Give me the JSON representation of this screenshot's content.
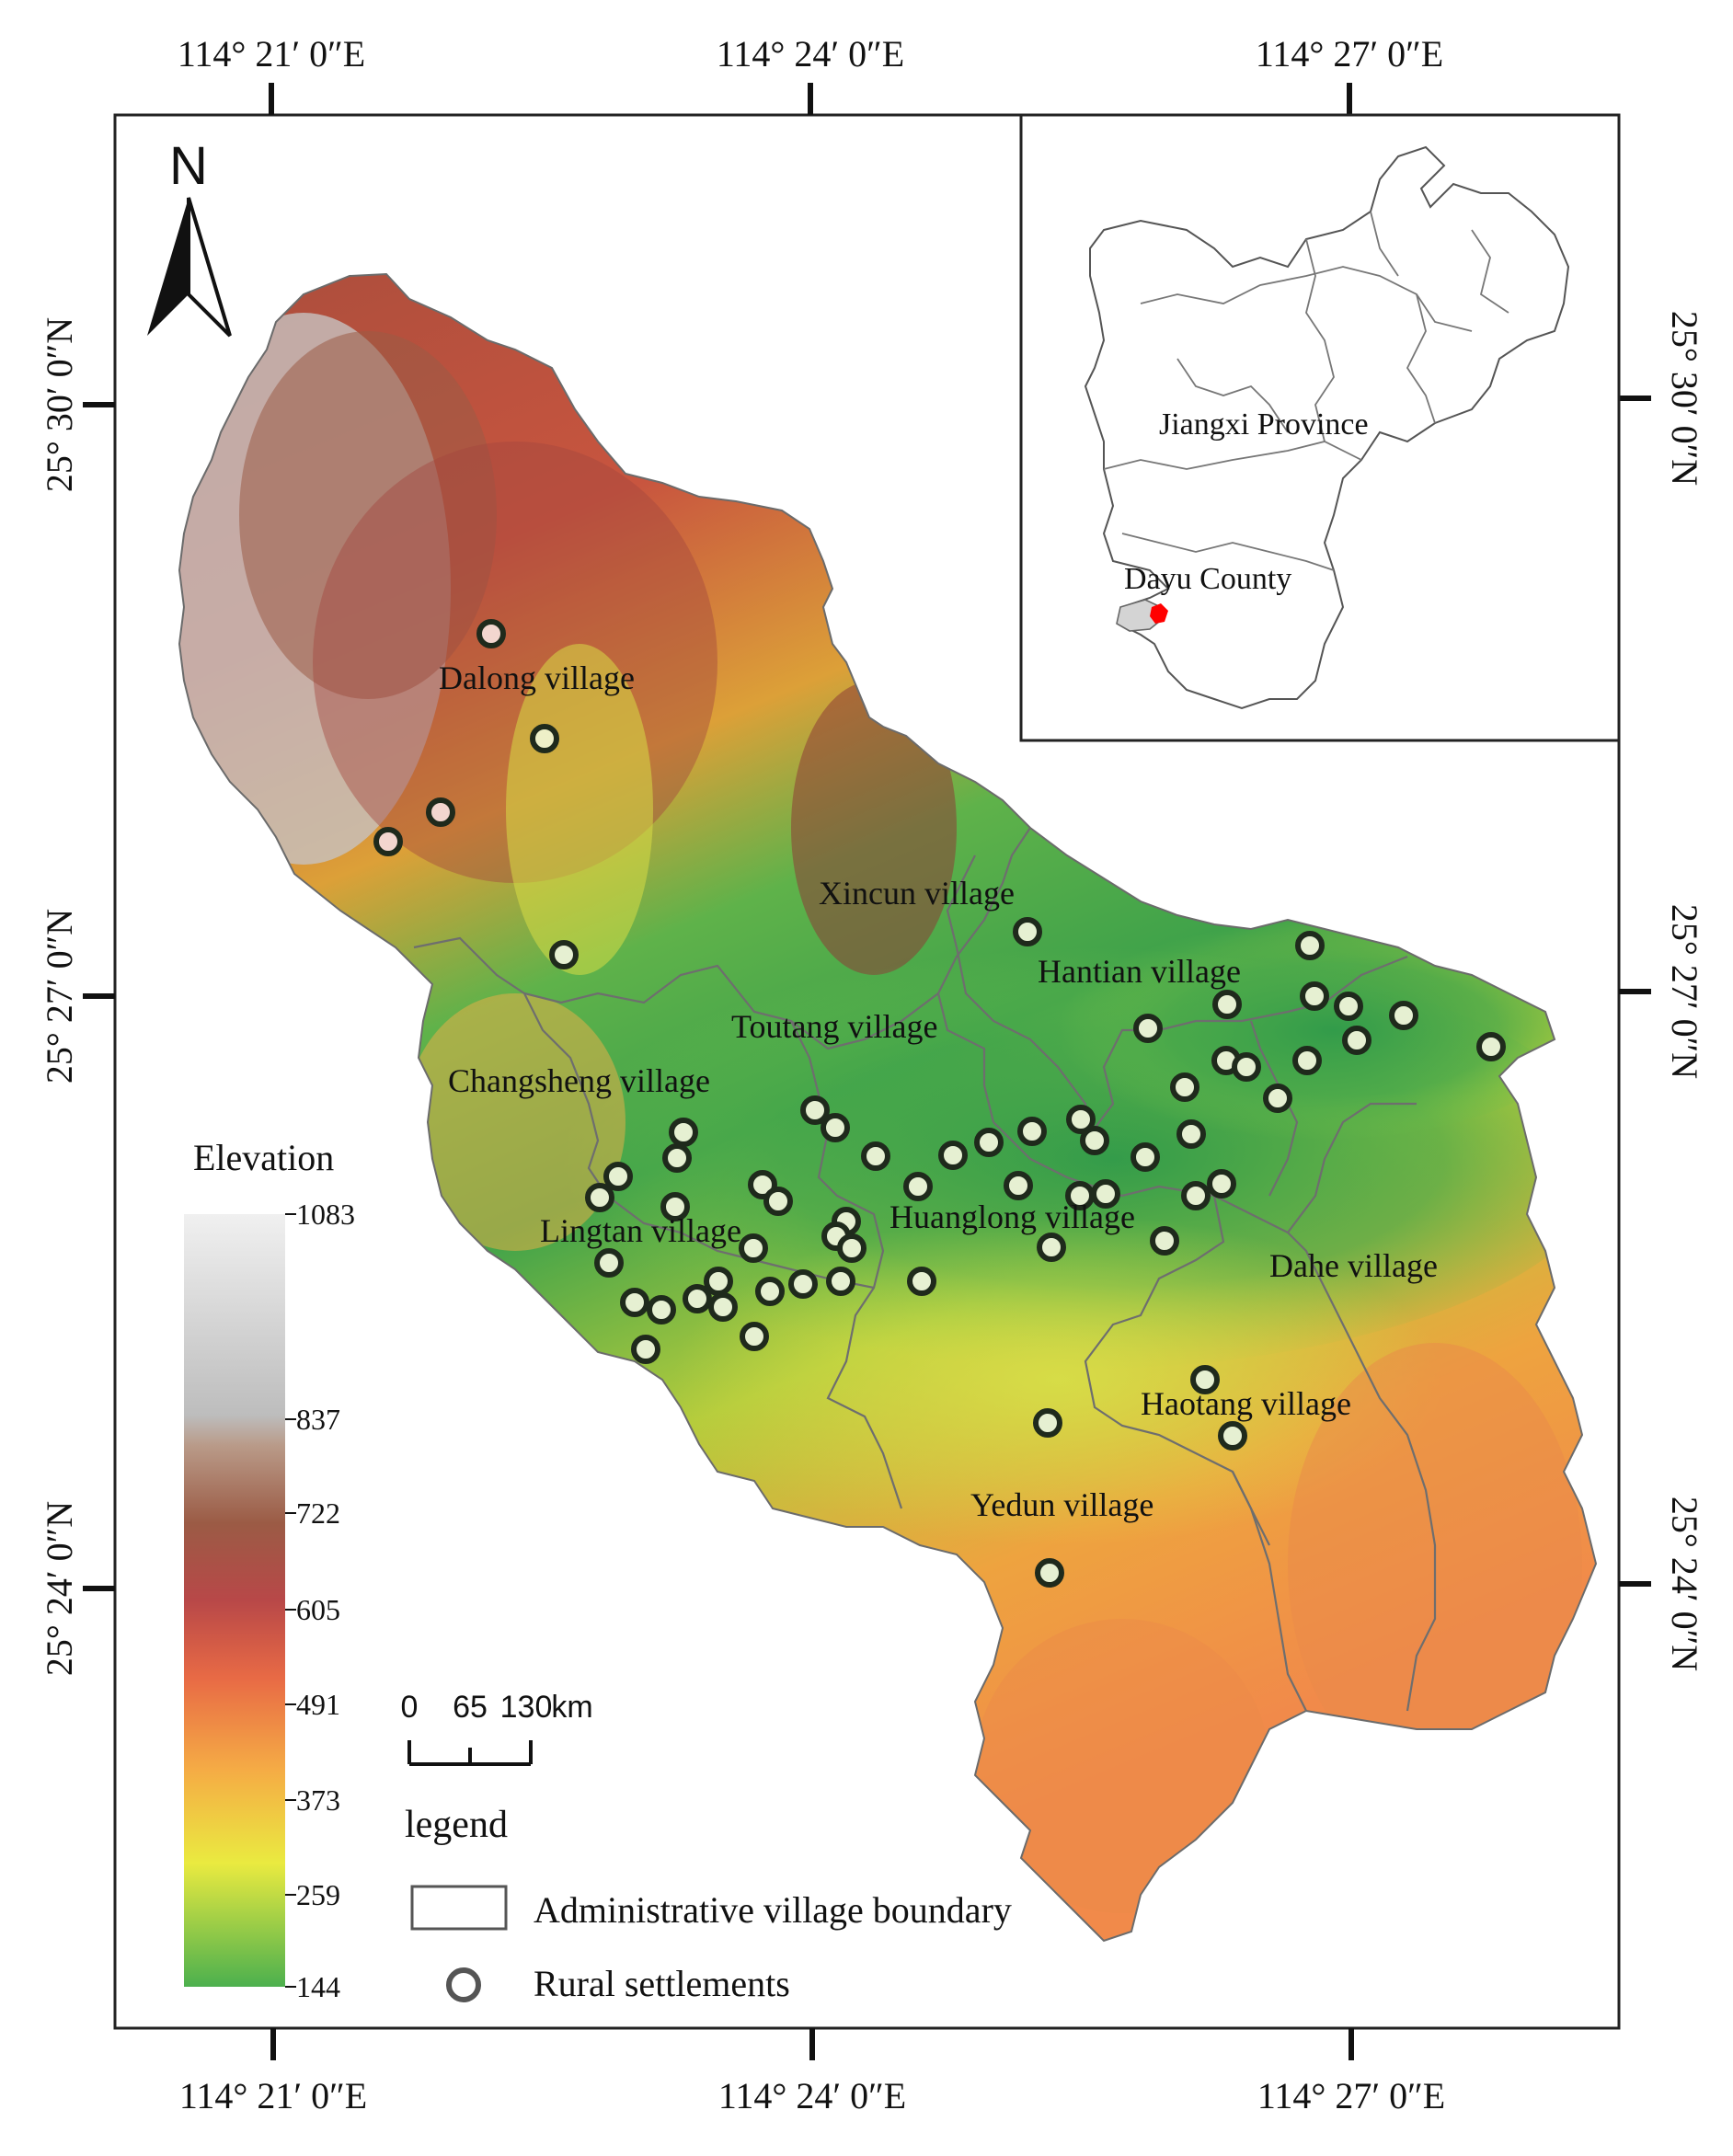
{
  "coords": {
    "lon_labels": [
      "114°  21′ 0″E",
      "114°  24′ 0″E",
      "114°  27′ 0″E"
    ],
    "lat_labels": [
      "25°  30′ 0″N",
      "25°  27′ 0″N",
      "25°  24′ 0″N"
    ]
  },
  "north_arrow": {
    "letter": "N"
  },
  "villages": [
    {
      "name": "Dalong village"
    },
    {
      "name": "Xincun village"
    },
    {
      "name": "Hantian village"
    },
    {
      "name": "Toutang village"
    },
    {
      "name": "Changsheng village"
    },
    {
      "name": "Lingtan village"
    },
    {
      "name": "Huanglong village"
    },
    {
      "name": "Dahe village"
    },
    {
      "name": "Haotang village"
    },
    {
      "name": "Yedun village"
    }
  ],
  "inset": {
    "province_label": "Jiangxi  Province",
    "county_label": "Dayu County",
    "highlight_color": "#ff0000"
  },
  "elevation_legend": {
    "title": "Elevation",
    "ticks": [
      "1083",
      "837",
      "722",
      "605",
      "491",
      "373",
      "259",
      "144"
    ]
  },
  "scale_bar": {
    "labels": [
      "0",
      "65",
      "130",
      "km"
    ]
  },
  "legend": {
    "title": "legend",
    "items": [
      {
        "label": "Administrative village boundary",
        "icon": "boundary-box-icon"
      },
      {
        "label": "Rural settlements",
        "icon": "settlement-circle-icon"
      }
    ]
  }
}
